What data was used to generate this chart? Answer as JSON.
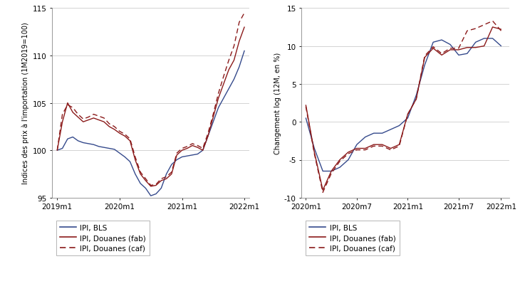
{
  "left": {
    "ylabel": "Indices des prix à l'importation (1M2019=100)",
    "ylim": [
      95,
      115
    ],
    "yticks": [
      95,
      100,
      105,
      110,
      115
    ],
    "xtick_labels": [
      "2019m1",
      "2020m1",
      "2021m1",
      "2022m1"
    ],
    "xtick_positions": [
      0,
      12,
      24,
      36
    ],
    "xlim": [
      -1,
      37
    ],
    "bls_x": [
      0,
      1,
      2,
      3,
      4,
      5,
      6,
      7,
      8,
      9,
      10,
      11,
      12,
      13,
      14,
      15,
      16,
      17,
      18,
      19,
      20,
      21,
      22,
      23,
      24,
      25,
      26,
      27,
      28,
      29,
      30,
      31,
      32,
      33,
      34,
      35,
      36
    ],
    "bls_y": [
      100.0,
      100.2,
      101.2,
      101.4,
      101.0,
      100.8,
      100.7,
      100.6,
      100.4,
      100.3,
      100.2,
      100.1,
      99.7,
      99.3,
      98.8,
      97.5,
      96.5,
      96.0,
      95.2,
      95.4,
      96.0,
      97.5,
      98.5,
      99.0,
      99.3,
      99.4,
      99.5,
      99.6,
      100.0,
      101.5,
      103.0,
      104.5,
      105.5,
      106.5,
      107.5,
      108.8,
      110.5
    ],
    "fab_x": [
      0,
      1,
      2,
      3,
      4,
      5,
      6,
      7,
      8,
      9,
      10,
      11,
      12,
      13,
      14,
      15,
      16,
      17,
      18,
      19,
      20,
      21,
      22,
      23,
      24,
      25,
      26,
      27,
      28,
      29,
      30,
      31,
      32,
      33,
      34,
      35,
      36
    ],
    "fab_y": [
      100.0,
      103.0,
      105.0,
      104.0,
      103.5,
      103.0,
      103.2,
      103.4,
      103.2,
      103.0,
      102.5,
      102.2,
      101.8,
      101.5,
      101.0,
      99.0,
      97.5,
      96.8,
      96.2,
      96.3,
      96.8,
      97.0,
      97.5,
      99.5,
      100.0,
      100.2,
      100.5,
      100.3,
      100.0,
      101.5,
      103.5,
      105.5,
      107.0,
      108.5,
      109.5,
      111.5,
      113.0
    ],
    "caf_x": [
      0,
      1,
      2,
      3,
      4,
      5,
      6,
      7,
      8,
      9,
      10,
      11,
      12,
      13,
      14,
      15,
      16,
      17,
      18,
      19,
      20,
      21,
      22,
      23,
      24,
      25,
      26,
      27,
      28,
      29,
      30,
      31,
      32,
      33,
      34,
      35,
      36
    ],
    "caf_y": [
      100.0,
      103.8,
      104.8,
      104.5,
      103.8,
      103.3,
      103.5,
      103.8,
      103.6,
      103.4,
      102.8,
      102.5,
      102.0,
      101.7,
      101.2,
      99.3,
      97.7,
      97.0,
      96.3,
      96.4,
      97.0,
      97.2,
      97.7,
      99.7,
      100.2,
      100.4,
      100.7,
      100.5,
      100.2,
      101.8,
      103.8,
      106.0,
      107.8,
      109.5,
      111.0,
      113.5,
      114.5
    ]
  },
  "right": {
    "ylabel": "Changement log (12M, en %)",
    "ylim": [
      -10,
      15
    ],
    "yticks": [
      -10,
      -5,
      0,
      5,
      10,
      15
    ],
    "xtick_labels": [
      "2020m1",
      "2020m7",
      "2021m1",
      "2021m7",
      "2022m1"
    ],
    "xtick_positions": [
      0,
      6,
      12,
      18,
      23
    ],
    "xlim": [
      -0.5,
      24
    ],
    "bls_x": [
      0,
      1,
      2,
      3,
      4,
      5,
      6,
      7,
      8,
      9,
      10,
      11,
      12,
      13,
      14,
      15,
      16,
      17,
      18,
      19,
      20,
      21,
      22,
      23
    ],
    "bls_y": [
      0.5,
      -3.5,
      -6.5,
      -6.5,
      -6.0,
      -5.0,
      -3.0,
      -2.0,
      -1.5,
      -1.5,
      -1.0,
      -0.5,
      0.5,
      3.5,
      7.5,
      10.5,
      10.8,
      10.2,
      8.8,
      9.0,
      10.5,
      11.0,
      11.0,
      10.0
    ],
    "fab_x": [
      0,
      1,
      2,
      3,
      4,
      5,
      6,
      7,
      8,
      9,
      10,
      11,
      12,
      13,
      14,
      15,
      16,
      17,
      18,
      19,
      20,
      21,
      22,
      23
    ],
    "fab_y": [
      2.2,
      -4.0,
      -9.0,
      -6.5,
      -5.0,
      -4.0,
      -3.5,
      -3.5,
      -3.0,
      -3.0,
      -3.5,
      -3.0,
      1.0,
      3.0,
      8.5,
      9.7,
      8.8,
      9.5,
      9.5,
      9.8,
      9.8,
      10.0,
      12.5,
      12.2
    ],
    "caf_x": [
      0,
      1,
      2,
      3,
      4,
      5,
      6,
      7,
      8,
      9,
      10,
      11,
      12,
      13,
      14,
      15,
      16,
      17,
      18,
      19,
      20,
      21,
      22,
      23
    ],
    "caf_y": [
      2.0,
      -4.2,
      -9.3,
      -6.8,
      -5.2,
      -4.2,
      -3.7,
      -3.7,
      -3.2,
      -3.2,
      -3.7,
      -3.2,
      1.0,
      3.0,
      8.7,
      9.9,
      9.0,
      9.7,
      9.7,
      12.0,
      12.3,
      12.8,
      13.3,
      12.0
    ]
  },
  "color_bls": "#354a8c",
  "color_red": "#8b1a1a",
  "legend_labels": [
    "IPI, BLS",
    "IPI, Douanes (fab)",
    "IPI, Douanes (caf)"
  ],
  "bg_color": "#f2f2f2"
}
